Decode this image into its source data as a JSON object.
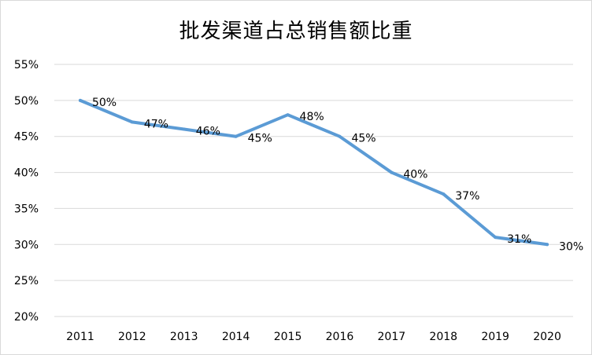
{
  "chart_data": {
    "type": "line",
    "title": "批发渠道占总销售额比重",
    "xlabel": "",
    "ylabel": "",
    "categories": [
      "2011",
      "2012",
      "2013",
      "2014",
      "2015",
      "2016",
      "2017",
      "2018",
      "2019",
      "2020"
    ],
    "series": [
      {
        "values": [
          50,
          47,
          46,
          45,
          48,
          45,
          40,
          37,
          31,
          30
        ],
        "data_labels": [
          "50%",
          "47%",
          "46%",
          "45%",
          "48%",
          "45%",
          "40%",
          "37%",
          "31%",
          "30%"
        ],
        "color": "#5b9bd5"
      }
    ],
    "y_ticks": [
      20,
      25,
      30,
      35,
      40,
      45,
      50,
      55
    ],
    "y_tick_labels": [
      "20%",
      "25%",
      "30%",
      "35%",
      "40%",
      "45%",
      "50%",
      "55%"
    ],
    "ylim": [
      20,
      55
    ],
    "grid": true,
    "legend": "none",
    "gridline_color": "#d9d9d9"
  }
}
